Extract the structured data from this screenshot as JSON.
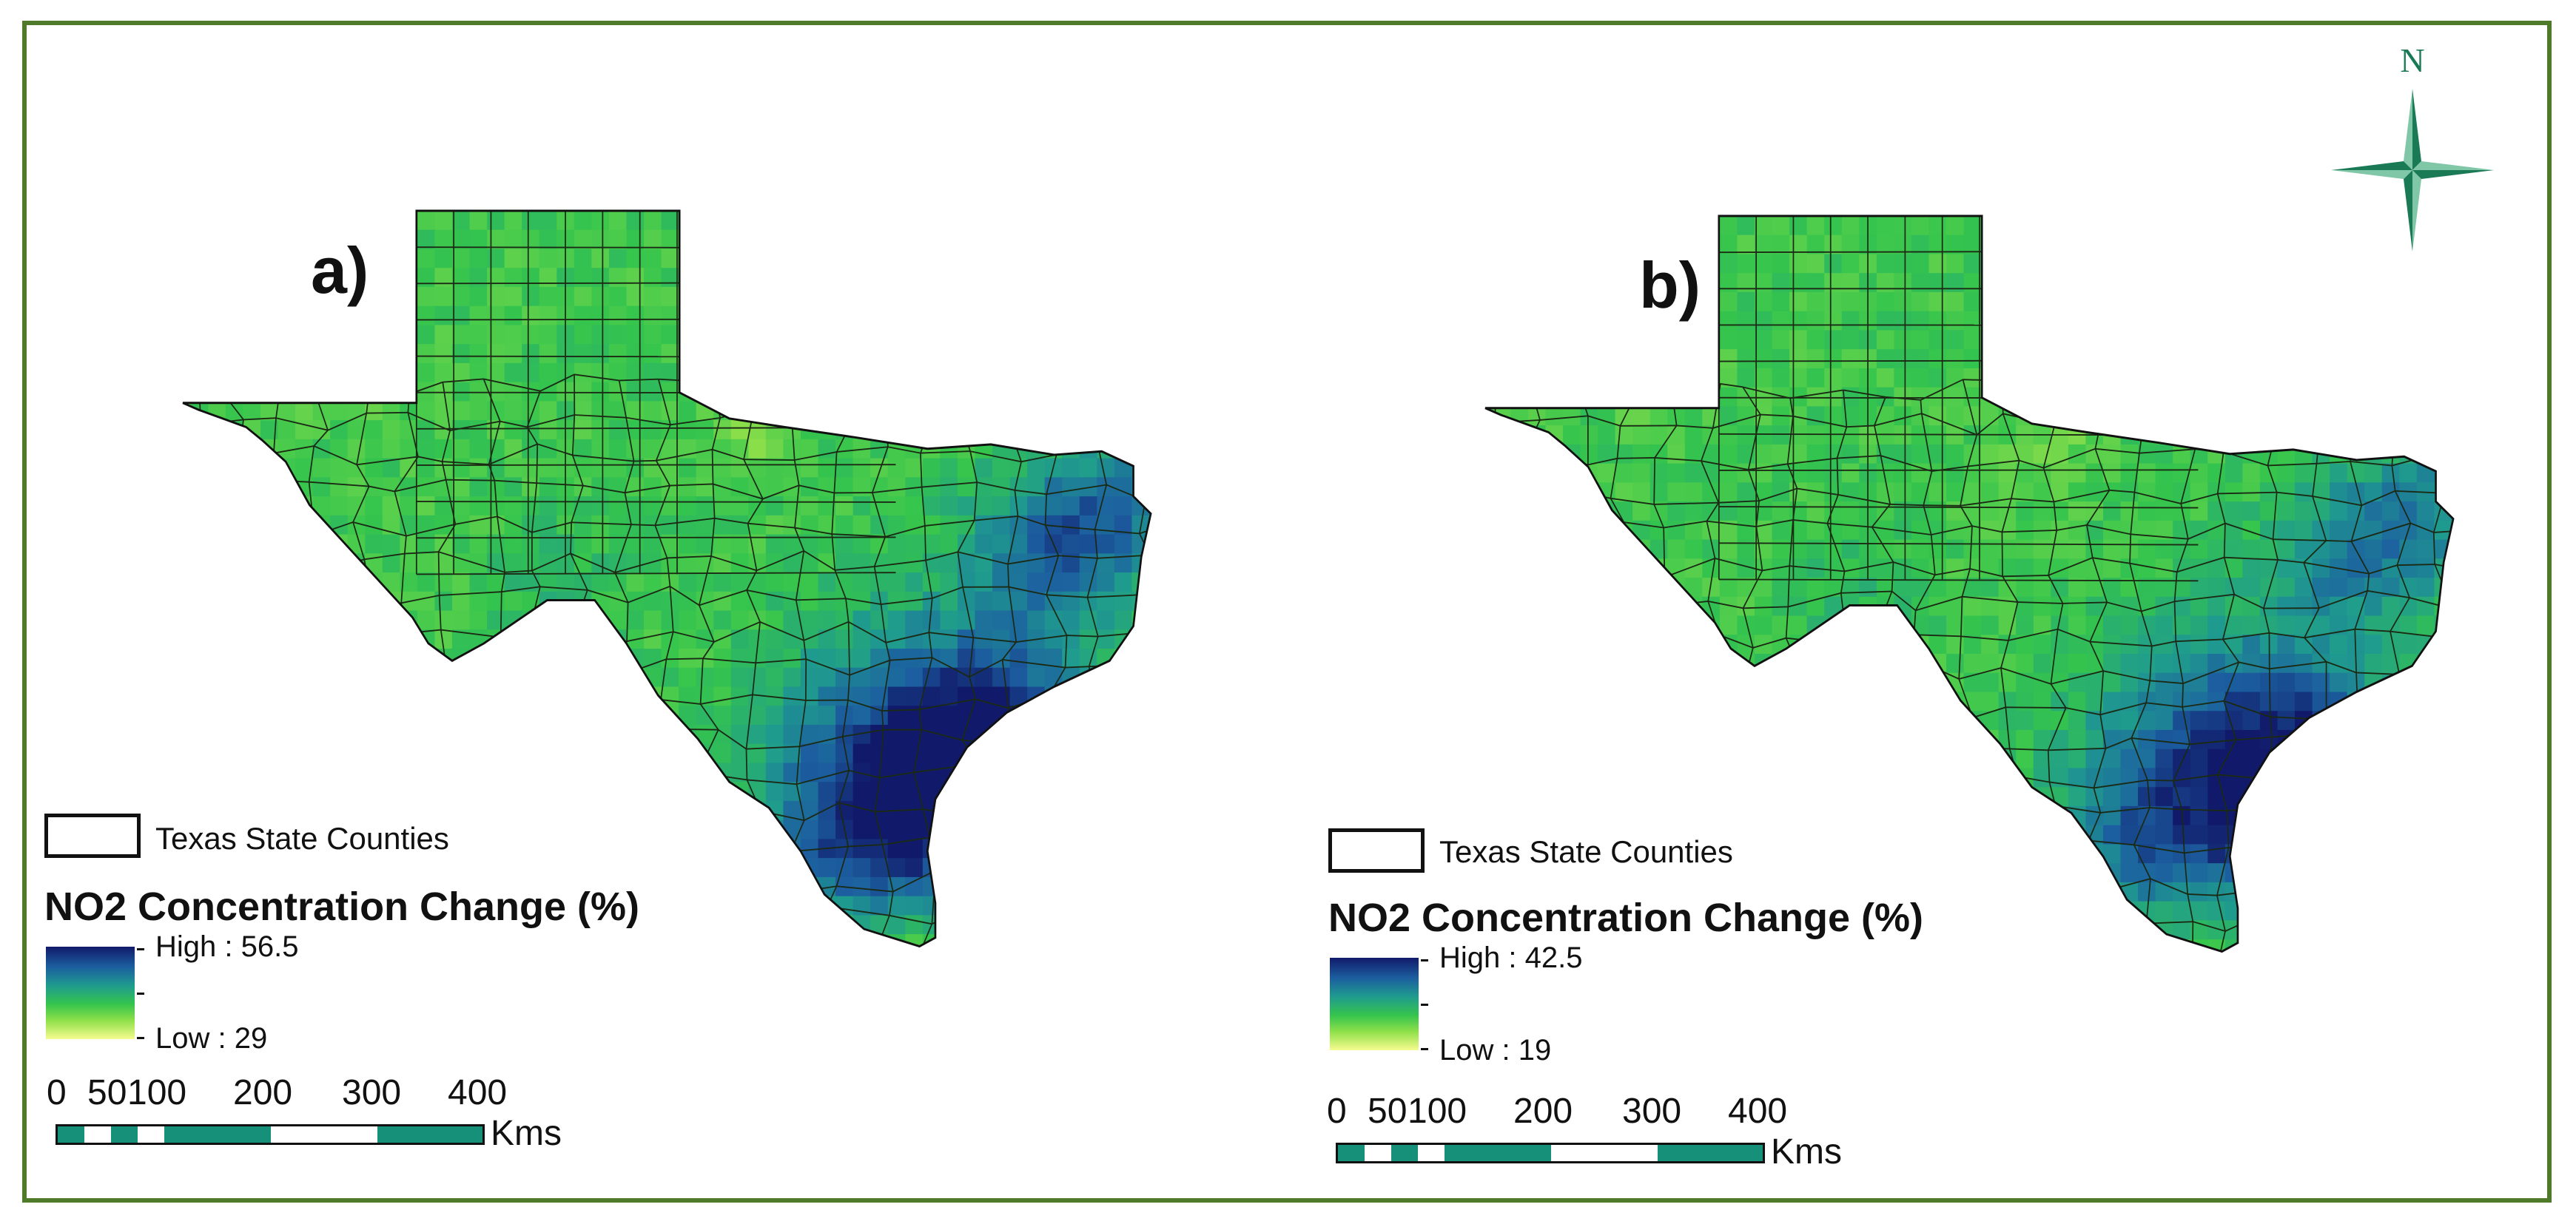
{
  "panels": [
    {
      "label": "a)",
      "legend": {
        "boundary_label": "Texas State Counties",
        "title": "NO2 Concentration Change (%)",
        "high_label": "High : 56.5",
        "low_label": "Low : 29"
      },
      "scale": {
        "ticks": [
          "0",
          "50",
          "100",
          "200",
          "300",
          "400"
        ],
        "unit": "Kms"
      }
    },
    {
      "label": "b)",
      "legend": {
        "boundary_label": "Texas State Counties",
        "title": "NO2 Concentration Change (%)",
        "high_label": "High : 42.5",
        "low_label": "Low : 19"
      },
      "scale": {
        "ticks": [
          "0",
          "50",
          "100",
          "200",
          "300",
          "400"
        ],
        "unit": "Kms"
      }
    }
  ],
  "north_arrow": {
    "label": "N"
  },
  "colors": {
    "frame": "#4e7a2a",
    "compass": "#1a7a55",
    "scale_fill": "#17907a",
    "low": "#f6fb8f",
    "mid": "#34c44d",
    "high": "#111a6a"
  }
}
